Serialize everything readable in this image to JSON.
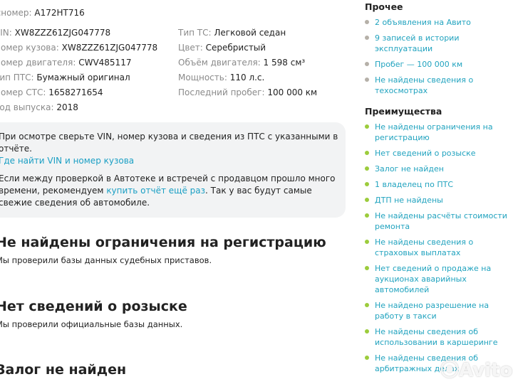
{
  "details": {
    "left": [
      {
        "label": "Госномер:",
        "value": "А172НТ716"
      },
      {
        "label": "VIN:",
        "value": "XW8ZZZ61ZJG047778"
      },
      {
        "label": "Номер кузова:",
        "value": "XW8ZZZ61ZJG047778"
      },
      {
        "label": "Номер двигателя:",
        "value": "CWV485117"
      },
      {
        "label": "Тип ПТС:",
        "value": "Бумажный оригинал"
      },
      {
        "label": "Номер СТС:",
        "value": "1658271654"
      },
      {
        "label": "Год выпуска:",
        "value": "2018"
      }
    ],
    "right": [
      {
        "label": "Тип ТС:",
        "value": "Легковой седан"
      },
      {
        "label": "Цвет:",
        "value": "Серебристый"
      },
      {
        "label": "Объём двигателя:",
        "value": "1 598 см³"
      },
      {
        "label": "Мощность:",
        "value": "110 л.с."
      },
      {
        "label": "Последний пробег:",
        "value": "100 000 км"
      }
    ]
  },
  "notice": {
    "p1": "При осмотре сверьте VIN, номер кузова и сведения из ПТС с указанными в отчёте.",
    "p1_link": "Где найти VIN и номер кузова",
    "p2_a": "Если между проверкой в Автотеке и встречей с продавцом прошло много времени, рекомендуем ",
    "p2_link": "купить отчёт ещё раз",
    "p2_b": ". Так у вас будут самые свежие сведения об автомобиле."
  },
  "sections": [
    {
      "title": "Не найдены ограничения на регистрацию",
      "text": "Мы проверили базы данных судебных приставов."
    },
    {
      "title": "Нет сведений о розыске",
      "text": "Мы проверили официальные базы данных."
    },
    {
      "title": "Залог не найден",
      "text": ""
    }
  ],
  "sidebar": {
    "other_title": "Прочее",
    "other": [
      "2 объявления на Авито",
      "9 записей в истории эксплуатации",
      "Пробег — 100 000 км",
      "Не найдены сведения о техосмотрах"
    ],
    "adv_title": "Преимущества",
    "adv": [
      "Не найдены ограничения на регистрацию",
      "Нет сведений о розыске",
      "Залог не найден",
      "1 владелец по ПТС",
      "ДТП не найдены",
      "Не найдены расчёты стоимости ремонта",
      "Не найдены сведения о страховых выплатах",
      "Нет сведений о продаже на аукционах аварийных автомобилей",
      "Не найдено разрешение на работу в такси",
      "Не найдены сведения об использовании в каршеринге",
      "Не найдены сведения об арбитражных делах"
    ]
  },
  "watermark": "Avito",
  "colors": {
    "link": "#21a3bf",
    "bullet_gray": "#b5b0a8",
    "bullet_green": "#9ccc3c"
  }
}
